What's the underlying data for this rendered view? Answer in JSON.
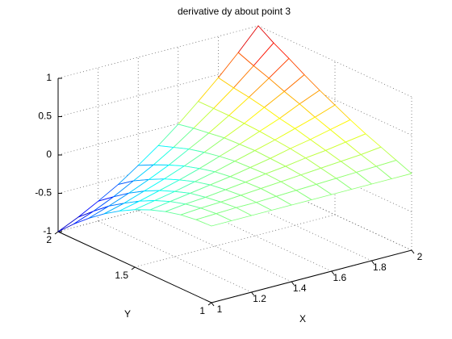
{
  "chart_data": {
    "type": "mesh",
    "title": "derivative dy about point 3",
    "xlabel": "X",
    "ylabel": "Y",
    "x": [
      1,
      1.1,
      1.2,
      1.3,
      1.4,
      1.5,
      1.6,
      1.7,
      1.8,
      1.9,
      2
    ],
    "y": [
      1,
      1.1,
      1.2,
      1.3,
      1.4,
      1.5,
      1.6,
      1.7,
      1.8,
      1.9,
      2
    ],
    "z": [
      [
        0,
        0,
        0,
        0,
        0,
        0,
        0,
        0,
        0,
        0,
        0
      ],
      [
        -0.01,
        0,
        0.01,
        0.01,
        0.02,
        0.03,
        0.04,
        0.05,
        0.06,
        0.07,
        0.08
      ],
      [
        -0.04,
        -0.02,
        -0.01,
        0.01,
        0.03,
        0.05,
        0.07,
        0.09,
        0.11,
        0.13,
        0.16
      ],
      [
        -0.09,
        -0.06,
        -0.04,
        -0.01,
        0.02,
        0.06,
        0.09,
        0.13,
        0.16,
        0.2,
        0.24
      ],
      [
        -0.16,
        -0.12,
        -0.08,
        -0.04,
        0,
        0.05,
        0.1,
        0.16,
        0.21,
        0.27,
        0.33
      ],
      [
        -0.25,
        -0.2,
        -0.15,
        -0.09,
        -0.03,
        0.04,
        0.11,
        0.18,
        0.26,
        0.34,
        0.43
      ],
      [
        -0.36,
        -0.3,
        -0.23,
        -0.16,
        -0.08,
        0.01,
        0.1,
        0.2,
        0.3,
        0.42,
        0.53
      ],
      [
        -0.49,
        -0.42,
        -0.33,
        -0.24,
        -0.14,
        -0.03,
        0.09,
        0.21,
        0.35,
        0.49,
        0.64
      ],
      [
        -0.64,
        -0.55,
        -0.45,
        -0.34,
        -0.22,
        -0.08,
        0.06,
        0.22,
        0.39,
        0.57,
        0.76
      ],
      [
        -0.81,
        -0.71,
        -0.59,
        -0.45,
        -0.31,
        -0.15,
        0.03,
        0.22,
        0.42,
        0.64,
        0.87
      ],
      [
        -1,
        -0.88,
        -0.74,
        -0.59,
        -0.41,
        -0.22,
        -0.01,
        0.22,
        0.46,
        0.72,
        1
      ]
    ],
    "xlim": [
      1,
      2
    ],
    "ylim": [
      1,
      2
    ],
    "zlim": [
      -1,
      1
    ],
    "xticks": [
      1,
      1.2,
      1.4,
      1.6,
      1.8,
      2
    ],
    "yticks": [
      1,
      1.5,
      2
    ],
    "zticks": [
      -1,
      -0.5,
      0,
      0.5,
      1
    ],
    "grid": true,
    "colormap": "jet"
  }
}
